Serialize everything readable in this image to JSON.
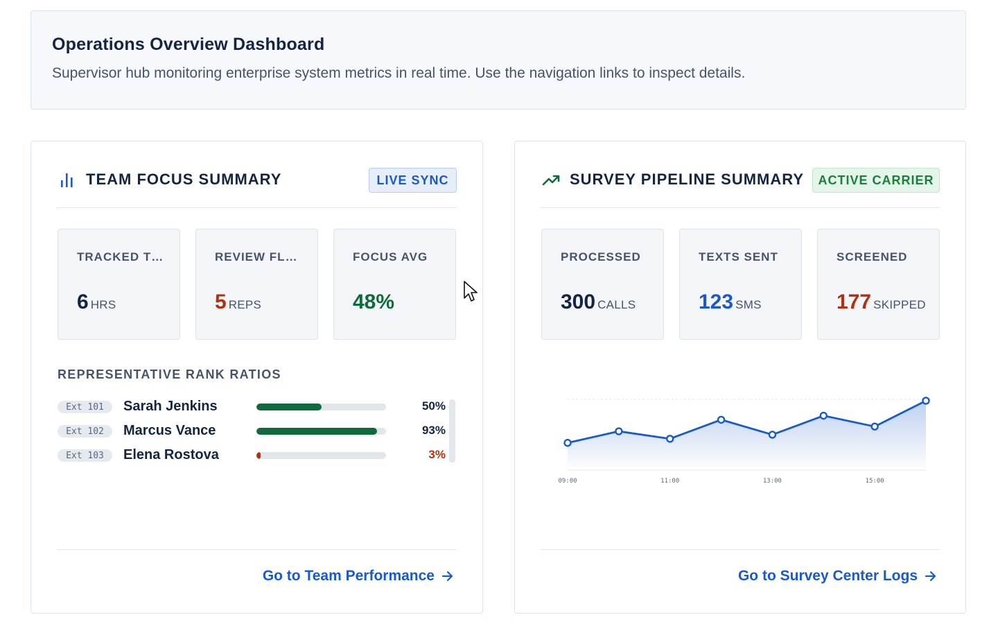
{
  "header": {
    "title": "Operations Overview Dashboard",
    "subtitle": "Supervisor hub monitoring enterprise system metrics in real time. Use the navigation links to inspect details."
  },
  "team": {
    "title": "TEAM FOCUS SUMMARY",
    "icon": "bar-chart-icon",
    "badge": "LIVE SYNC",
    "stats": [
      {
        "label": "TRACKED TIME",
        "value": "6",
        "unit": "HRS",
        "color": "#132542"
      },
      {
        "label": "REVIEW FLAGS",
        "value": "5",
        "unit": "REPS",
        "color": "#b2300f"
      },
      {
        "label": "FOCUS AVG",
        "value": "48%",
        "unit": "",
        "color": "#0f6b3c"
      }
    ],
    "rank_title": "REPRESENTATIVE RANK RATIOS",
    "reps": [
      {
        "ext": "Ext 101",
        "name": "Sarah Jenkins",
        "pct_label": "50%",
        "ratio": 0.5,
        "color": "#0f6b3c"
      },
      {
        "ext": "Ext 102",
        "name": "Marcus Vance",
        "pct_label": "93%",
        "ratio": 0.93,
        "color": "#0f6b3c"
      },
      {
        "ext": "Ext 103",
        "name": "Elena Rostova",
        "pct_label": "3%",
        "ratio": 0.03,
        "color": "#b2300f"
      }
    ],
    "link": "Go to Team Performance"
  },
  "survey": {
    "title": "SURVEY PIPELINE SUMMARY",
    "icon": "trending-up-icon",
    "badge": "ACTIVE CARRIER",
    "stats": [
      {
        "label": "PROCESSED",
        "value": "300",
        "unit": "CALLS",
        "color": "#132542"
      },
      {
        "label": "TEXTS SENT",
        "value": "123",
        "unit": "SMS",
        "color": "#1a5ac8"
      },
      {
        "label": "SCREENED",
        "value": "177",
        "unit": "SKIPPED",
        "color": "#b2300f"
      }
    ],
    "link": "Go to Survey Center Logs"
  },
  "chart_data": {
    "type": "line",
    "x": [
      "09:00",
      "10:00",
      "11:00",
      "12:00",
      "13:00",
      "14:00",
      "15:00",
      "16:00"
    ],
    "tick_labels": [
      "09:00",
      "11:00",
      "13:00",
      "15:00"
    ],
    "values": [
      36,
      53,
      42,
      70,
      48,
      76,
      60,
      98
    ],
    "ylim": [
      0,
      100
    ],
    "grid": false,
    "area_fill": true,
    "color": "#1a5ac8"
  }
}
